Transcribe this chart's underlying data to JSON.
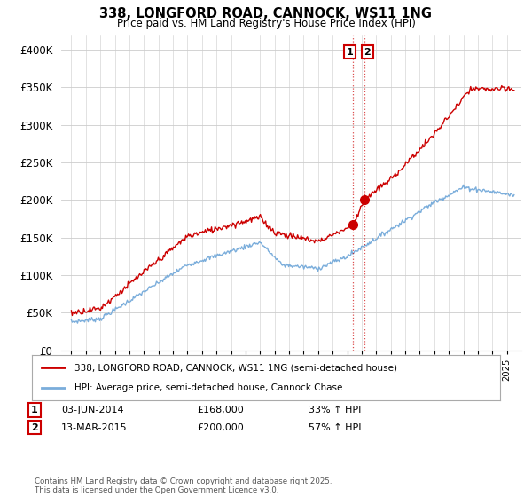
{
  "title": "338, LONGFORD ROAD, CANNOCK, WS11 1NG",
  "subtitle": "Price paid vs. HM Land Registry's House Price Index (HPI)",
  "legend_line1": "338, LONGFORD ROAD, CANNOCK, WS11 1NG (semi-detached house)",
  "legend_line2": "HPI: Average price, semi-detached house, Cannock Chase",
  "house_color": "#cc0000",
  "hpi_color": "#7aaddb",
  "vline_color": "#cc0000",
  "footer": "Contains HM Land Registry data © Crown copyright and database right 2025.\nThis data is licensed under the Open Government Licence v3.0.",
  "transaction1_date": "03-JUN-2014",
  "transaction1_price": 168000,
  "transaction1_hpi": "33% ↑ HPI",
  "transaction2_date": "13-MAR-2015",
  "transaction2_price": 200000,
  "transaction2_hpi": "57% ↑ HPI",
  "ylim": [
    0,
    420000
  ],
  "yticks": [
    0,
    50000,
    100000,
    150000,
    200000,
    250000,
    300000,
    350000,
    400000
  ],
  "ytick_labels": [
    "£0",
    "£50K",
    "£100K",
    "£150K",
    "£200K",
    "£250K",
    "£300K",
    "£350K",
    "£400K"
  ],
  "background_color": "#ffffff",
  "grid_color": "#cccccc"
}
